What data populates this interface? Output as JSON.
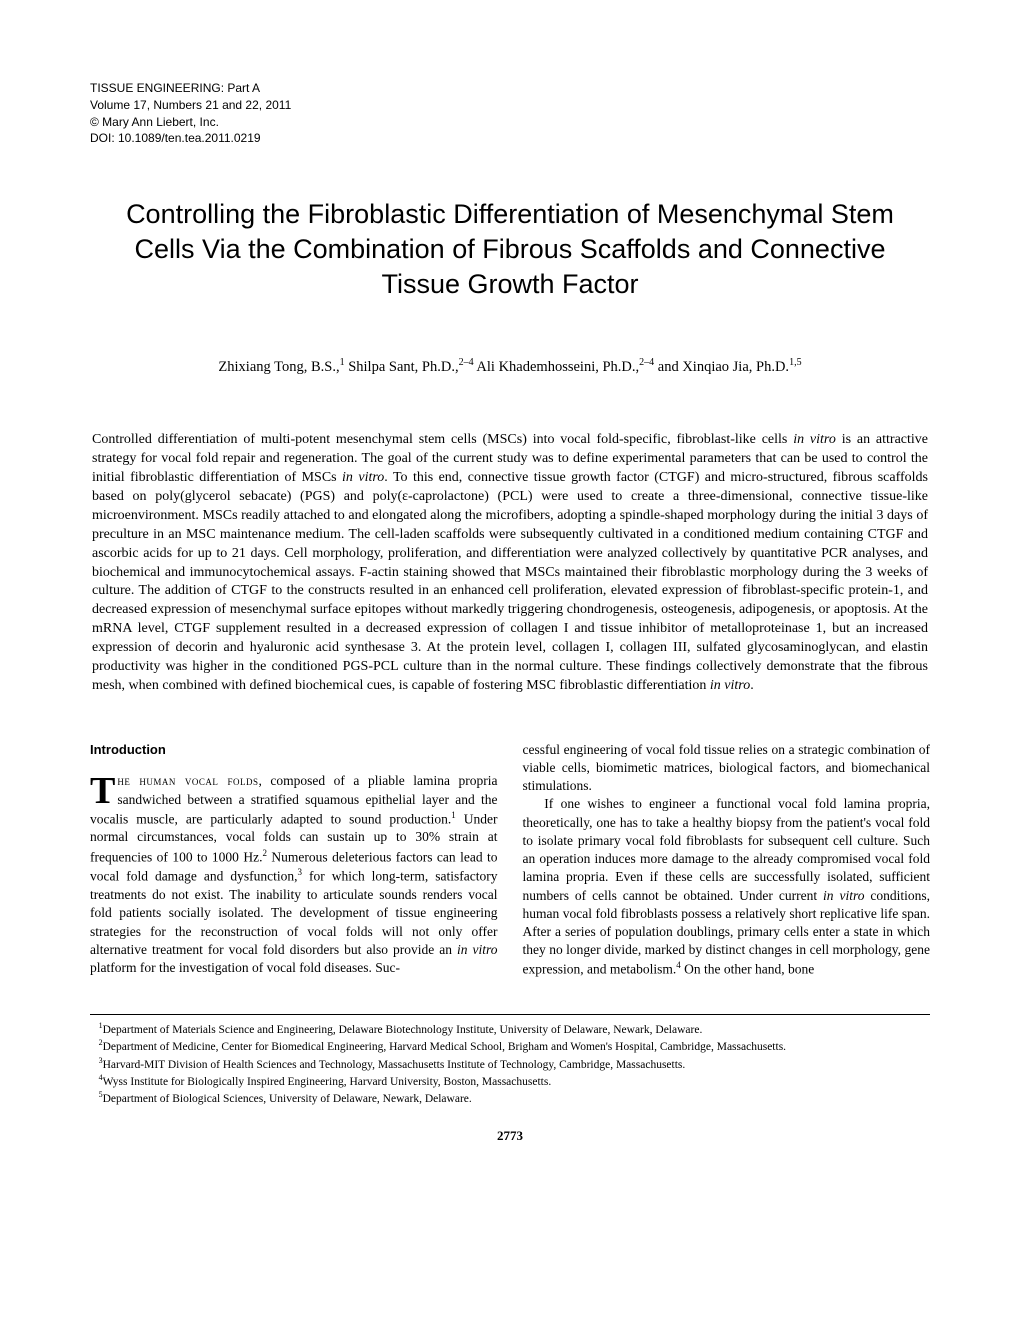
{
  "header": {
    "journal": "TISSUE ENGINEERING: Part A",
    "volume": "Volume 17, Numbers 21 and 22, 2011",
    "copyright": "© Mary Ann Liebert, Inc.",
    "doi": "DOI: 10.1089/ten.tea.2011.0219"
  },
  "title": "Controlling the Fibroblastic Differentiation of Mesenchymal Stem Cells Via the Combination of Fibrous Scaffolds and Connective Tissue Growth Factor",
  "authors_html": "Zhixiang Tong, B.S.,<sup>1</sup> Shilpa Sant, Ph.D.,<sup>2–4</sup> Ali Khademhosseini, Ph.D.,<sup>2–4</sup> and Xinqiao Jia, Ph.D.<sup>1,5</sup>",
  "abstract_html": "Controlled differentiation of multi-potent mesenchymal stem cells (MSCs) into vocal fold-specific, fibroblast-like cells <em>in vitro</em> is an attractive strategy for vocal fold repair and regeneration. The goal of the current study was to define experimental parameters that can be used to control the initial fibroblastic differentiation of MSCs <em>in vitro</em>. To this end, connective tissue growth factor (CTGF) and micro-structured, fibrous scaffolds based on poly(glycerol sebacate) (PGS) and poly(ε-caprolactone) (PCL) were used to create a three-dimensional, connective tissue-like microenvironment. MSCs readily attached to and elongated along the microfibers, adopting a spindle-shaped morphology during the initial 3 days of preculture in an MSC maintenance medium. The cell-laden scaffolds were subsequently cultivated in a conditioned medium containing CTGF and ascorbic acids for up to 21 days. Cell morphology, proliferation, and differentiation were analyzed collectively by quantitative PCR analyses, and biochemical and immunocytochemical assays. F-actin staining showed that MSCs maintained their fibroblastic morphology during the 3 weeks of culture. The addition of CTGF to the constructs resulted in an enhanced cell proliferation, elevated expression of fibroblast-specific protein-1, and decreased expression of mesenchymal surface epitopes without markedly triggering chondrogenesis, osteogenesis, adipogenesis, or apoptosis. At the mRNA level, CTGF supplement resulted in a decreased expression of collagen I and tissue inhibitor of metalloproteinase 1, but an increased expression of decorin and hyaluronic acid synthesase 3. At the protein level, collagen I, collagen III, sulfated glycosaminoglycan, and elastin productivity was higher in the conditioned PGS-PCL culture than in the normal culture. These findings collectively demonstrate that the fibrous mesh, when combined with defined biochemical cues, is capable of fostering MSC fibroblastic differentiation <em>in vitro</em>.",
  "introduction": {
    "heading": "Introduction",
    "col1_html": "<span class=\"dropcap\">T</span><span class=\"smallcaps\">he human vocal folds</span>, composed of a pliable lamina propria sandwiched between a stratified squamous epithelial layer and the vocalis muscle, are particularly adapted to sound production.<sup>1</sup> Under normal circumstances, vocal folds can sustain up to 30% strain at frequencies of 100 to 1000 Hz.<sup>2</sup> Numerous deleterious factors can lead to vocal fold damage and dysfunction,<sup>3</sup> for which long-term, satisfactory treatments do not exist. The inability to articulate sounds renders vocal fold patients socially isolated. The development of tissue engineering strategies for the reconstruction of vocal folds will not only offer alternative treatment for vocal fold disorders but also provide an <em>in vitro</em> platform for the investigation of vocal fold diseases. Suc-",
    "col2_html": "cessful engineering of vocal fold tissue relies on a strategic combination of viable cells, biomimetic matrices, biological factors, and biomechanical stimulations.<br>&nbsp;&nbsp;&nbsp;If one wishes to engineer a functional vocal fold lamina propria, theoretically, one has to take a healthy biopsy from the patient's vocal fold to isolate primary vocal fold fibroblasts for subsequent cell culture. Such an operation induces more damage to the already compromised vocal fold lamina propria. Even if these cells are successfully isolated, sufficient numbers of cells cannot be obtained. Under current <em>in vitro</em> conditions, human vocal fold fibroblasts possess a relatively short replicative life span. After a series of population doublings, primary cells enter a state in which they no longer divide, marked by distinct changes in cell morphology, gene expression, and metabolism.<sup>4</sup> On the other hand, bone"
  },
  "footnotes_html": "&nbsp;&nbsp;&nbsp;<sup>1</sup>Department of Materials Science and Engineering, Delaware Biotechnology Institute, University of Delaware, Newark, Delaware.<br>&nbsp;&nbsp;&nbsp;<sup>2</sup>Department of Medicine, Center for Biomedical Engineering, Harvard Medical School, Brigham and Women's Hospital, Cambridge, Massachusetts.<br>&nbsp;&nbsp;&nbsp;<sup>3</sup>Harvard-MIT Division of Health Sciences and Technology, Massachusetts Institute of Technology, Cambridge, Massachusetts.<br>&nbsp;&nbsp;&nbsp;<sup>4</sup>Wyss Institute for Biologically Inspired Engineering, Harvard University, Boston, Massachusetts.<br>&nbsp;&nbsp;&nbsp;<sup>5</sup>Department of Biological Sciences, University of Delaware, Newark, Delaware.",
  "page_number": "2773"
}
